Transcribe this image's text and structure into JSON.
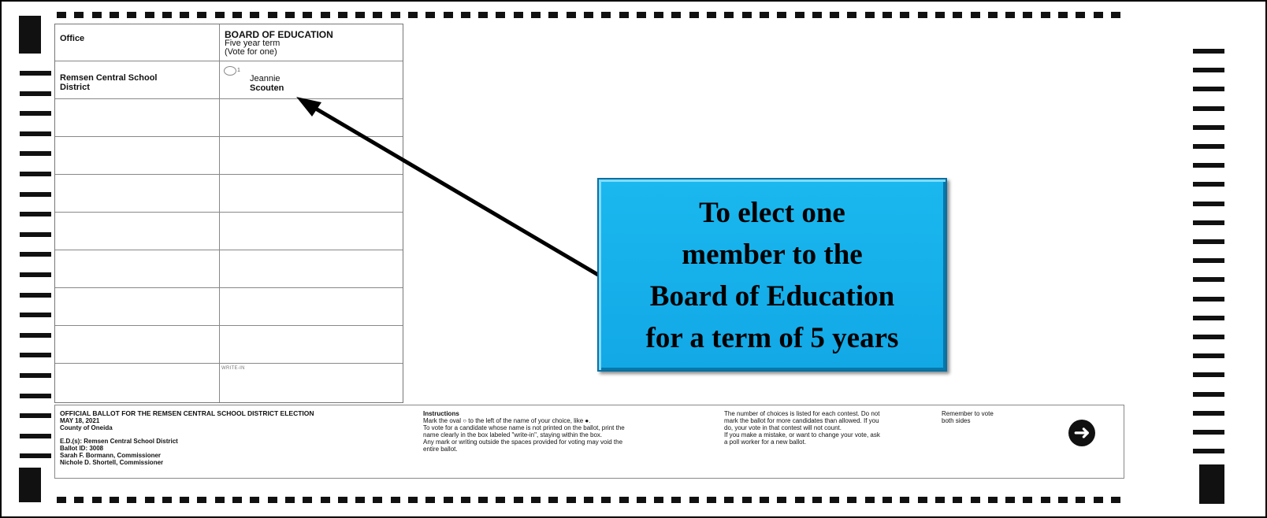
{
  "ballot": {
    "office_header": "Office",
    "contest": {
      "title": "BOARD OF EDUCATION",
      "term": "Five year term",
      "vote_for": "(Vote for one)"
    },
    "district_line1": "Remsen Central School",
    "district_line2": "District",
    "candidate": {
      "oval_number": "1",
      "first_name": "Jeannie",
      "last_name": "Scouten"
    },
    "write_in_label": "WRITE-IN"
  },
  "footer": {
    "official": {
      "title": "OFFICIAL BALLOT FOR THE REMSEN CENTRAL SCHOOL DISTRICT ELECTION",
      "date": "MAY 18, 2021",
      "county": "County of Oneida",
      "ed": "E.D.(s): Remsen Central School District",
      "ballot_id": "Ballot ID: 3008",
      "commissioner1": "Sarah F. Bormann, Commissioner",
      "commissioner2": "Nichole D. Shortell, Commissioner"
    },
    "instructions": {
      "heading": "Instructions",
      "line1": "Mark the oval ○ to the left of the name of your choice, like ●.",
      "line2": "To vote for a candidate whose name is not printed on the ballot, print the",
      "line3": "name clearly in the box labeled \"write-in\", staying within the box.",
      "line4": "Any mark or writing outside the spaces provided for voting may void the",
      "line5": "entire ballot."
    },
    "choices": {
      "line1": "The number of choices is listed for each contest. Do not",
      "line2": "mark the ballot for more candidates than allowed. If you",
      "line3": "do, your vote in that contest will not count.",
      "line4": "If you make a mistake, or want to change your vote, ask",
      "line5": "a poll worker for a new ballot."
    },
    "remember": {
      "line1": "Remember to vote",
      "line2": "both sides"
    },
    "arrow_icon": "arrow-right-circle-icon"
  },
  "callout": {
    "line1": "To elect one",
    "line2": "member to the",
    "line3": "Board of Education",
    "line4": "for a term of 5 years",
    "color": "#1ab8ef"
  }
}
